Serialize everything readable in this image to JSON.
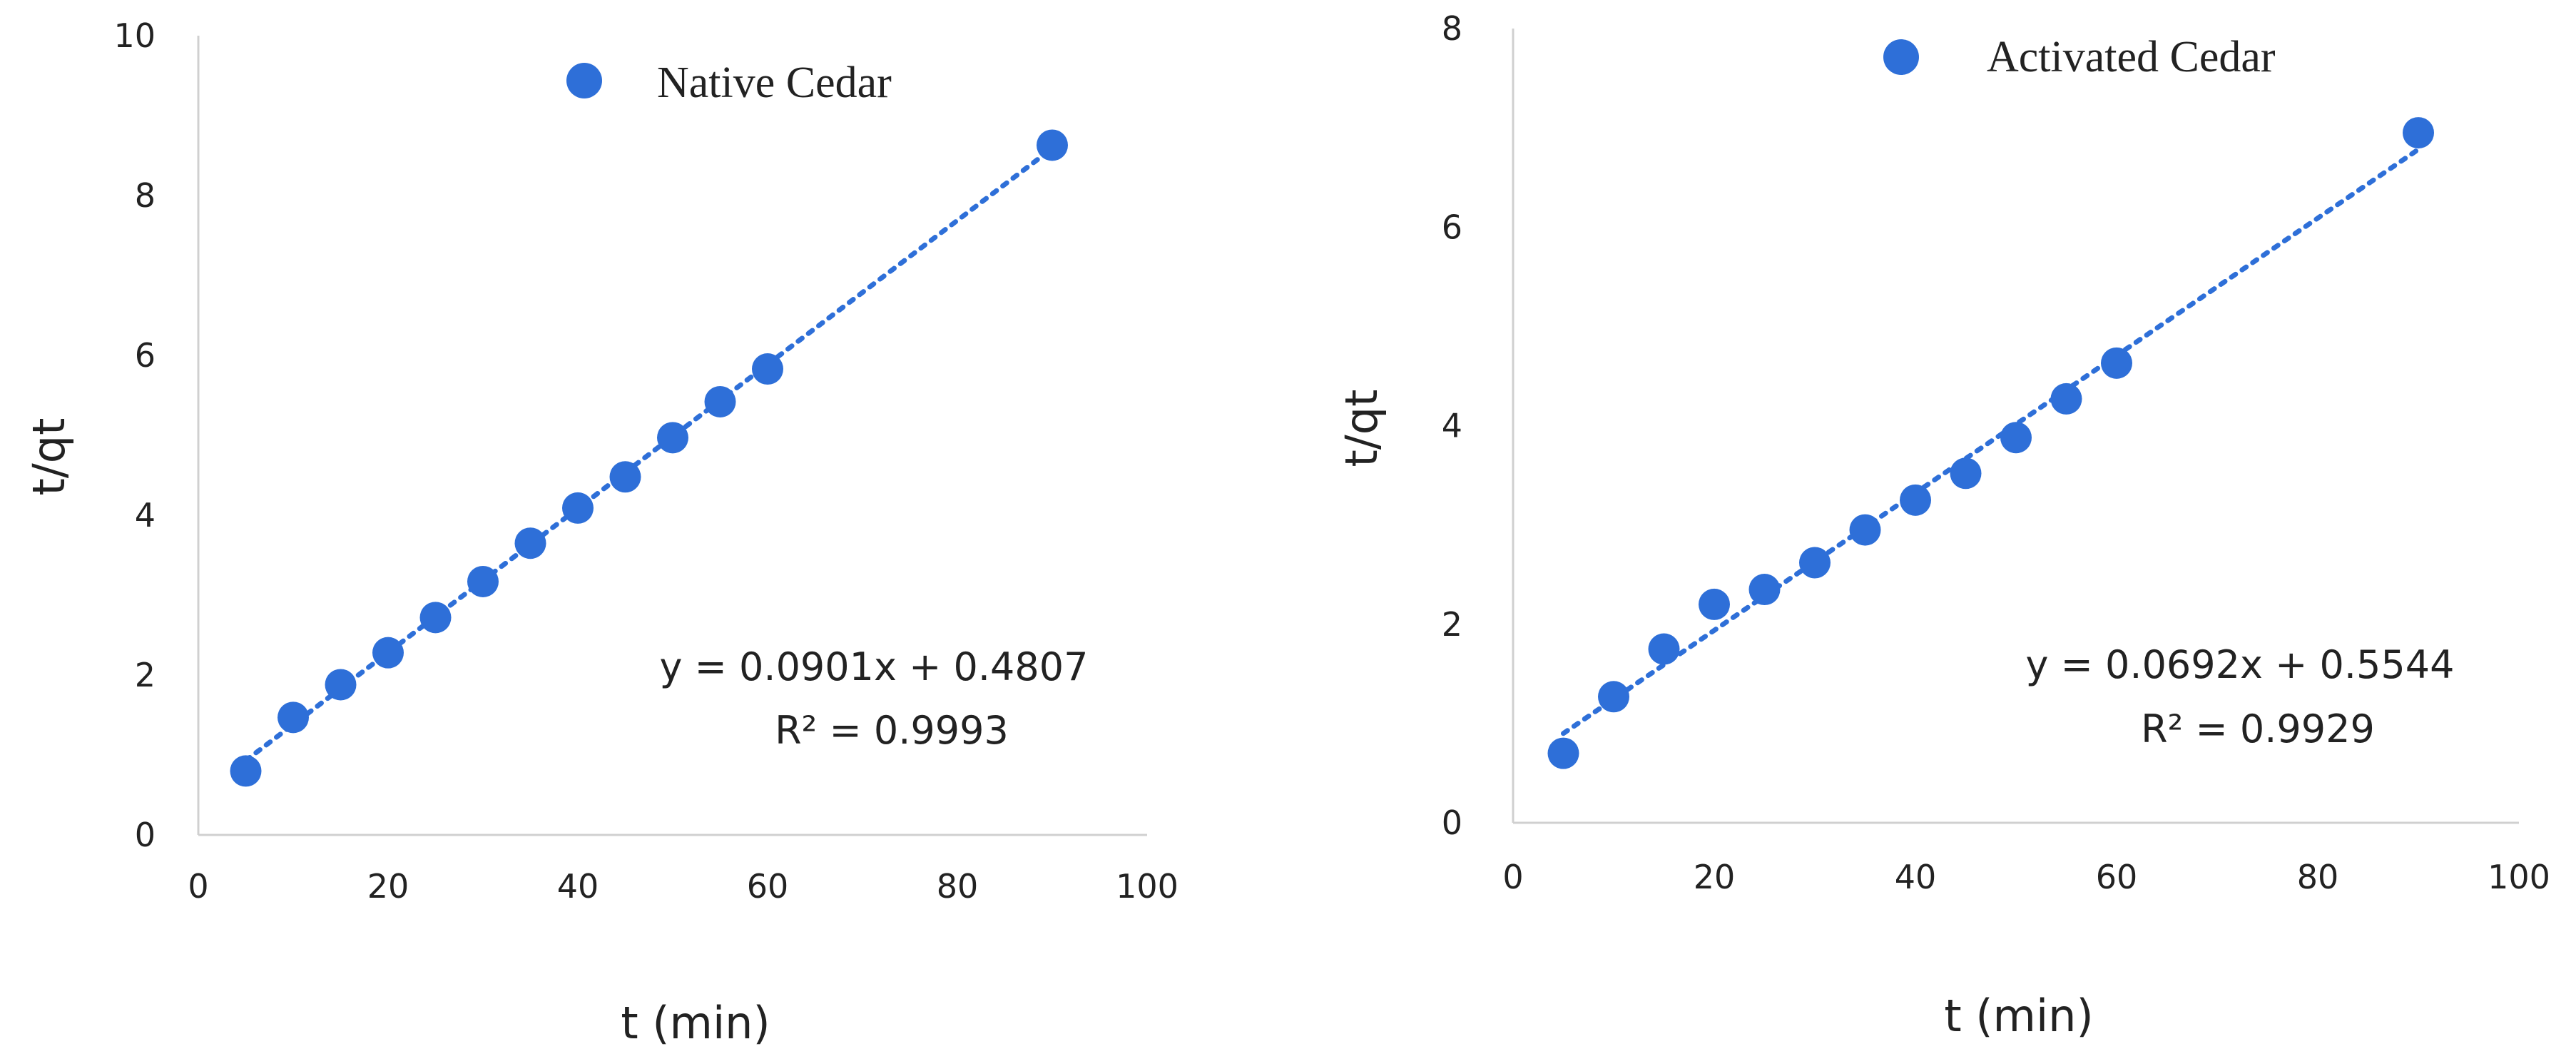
{
  "chart_data": [
    {
      "type": "scatter",
      "title": "",
      "xlabel": "t (min)",
      "ylabel": "t/qt",
      "xlim": [
        0,
        100
      ],
      "ylim": [
        0,
        10
      ],
      "xticks": [
        0,
        20,
        40,
        60,
        80,
        100
      ],
      "yticks": [
        0,
        2,
        4,
        6,
        8,
        10
      ],
      "legend": "top-center",
      "series": [
        {
          "name": "Native Cedar",
          "color": "#2E6FD8",
          "x": [
            5,
            10,
            15,
            20,
            25,
            30,
            35,
            40,
            45,
            50,
            55,
            60,
            90
          ],
          "y": [
            0.8,
            1.47,
            1.88,
            2.28,
            2.72,
            3.17,
            3.65,
            4.09,
            4.48,
            4.97,
            5.42,
            5.83,
            8.63
          ]
        }
      ],
      "trendline": {
        "slope": 0.0901,
        "intercept": 0.4807,
        "x_range": [
          5,
          90
        ],
        "style": "dotted"
      },
      "equation": "y = 0.0901x + 0.4807",
      "r_squared": "R² = 0.9993"
    },
    {
      "type": "scatter",
      "title": "",
      "xlabel": "t (min)",
      "ylabel": "t/qt",
      "xlim": [
        0,
        100
      ],
      "ylim": [
        0,
        8
      ],
      "xticks": [
        0,
        20,
        40,
        60,
        80,
        100
      ],
      "yticks": [
        0,
        2,
        4,
        6,
        8
      ],
      "legend": "top-center",
      "series": [
        {
          "name": "Activated Cedar",
          "color": "#2E6FD8",
          "x": [
            5,
            10,
            15,
            20,
            25,
            30,
            35,
            40,
            45,
            50,
            55,
            60,
            90
          ],
          "y": [
            0.7,
            1.27,
            1.75,
            2.2,
            2.35,
            2.62,
            2.95,
            3.25,
            3.52,
            3.88,
            4.27,
            4.63,
            6.95
          ]
        }
      ],
      "trendline": {
        "slope": 0.0692,
        "intercept": 0.5544,
        "x_range": [
          5,
          90
        ],
        "style": "dotted"
      },
      "equation": "y = 0.0692x + 0.5544",
      "r_squared": "R² = 0.9929"
    }
  ]
}
